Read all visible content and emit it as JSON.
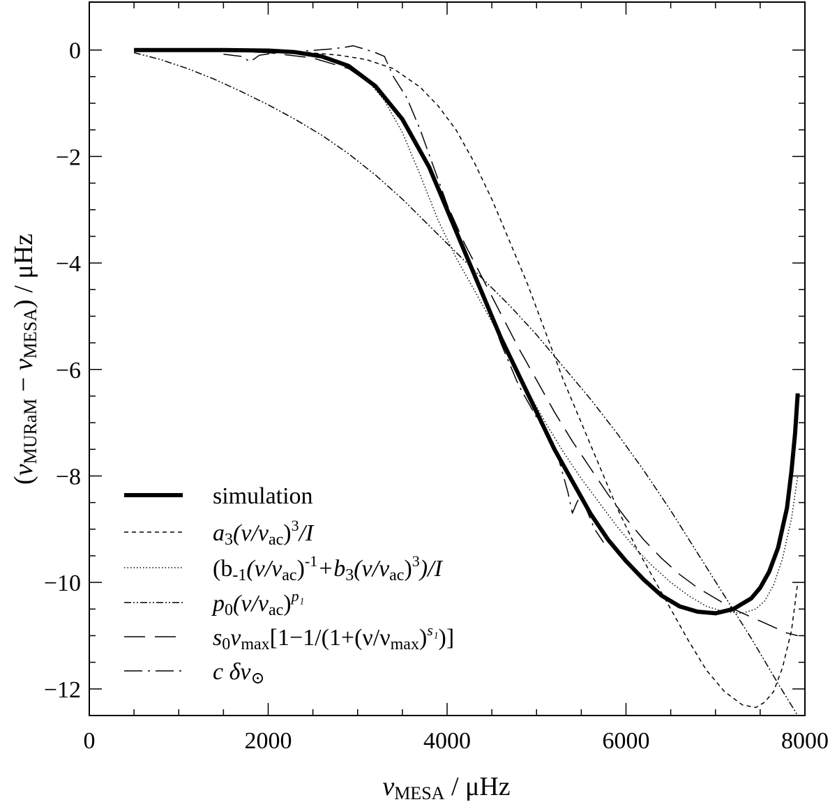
{
  "chart_data": {
    "type": "line",
    "xlim": [
      0,
      8000
    ],
    "ylim": [
      -12.5,
      0.9
    ],
    "x_ticks": [
      0,
      2000,
      4000,
      6000,
      8000
    ],
    "y_ticks": [
      0,
      -2,
      -4,
      -6,
      -8,
      -10,
      -12
    ],
    "x_tick_labels": [
      "0",
      "2000",
      "4000",
      "6000",
      "8000"
    ],
    "y_tick_labels": [
      "0",
      "−2",
      "−4",
      "−6",
      "−8",
      "−10",
      "−12"
    ],
    "xlabel": {
      "nu": "ν",
      "sub": "MESA",
      "rest": " / μHz"
    },
    "ylabel": {
      "open": "(",
      "nu1": "ν",
      "sub1": "MURaM",
      "minus": " − ",
      "nu2": "ν",
      "sub2": "MESA",
      "rest": ") / μHz"
    },
    "grid": false,
    "legend_position": "bottom-left",
    "series": [
      {
        "name": "simulation",
        "style": "thick-solid",
        "points": [
          [
            500,
            0
          ],
          [
            1000,
            0
          ],
          [
            1500,
            0
          ],
          [
            2000,
            -0.01
          ],
          [
            2300,
            -0.04
          ],
          [
            2600,
            -0.12
          ],
          [
            2900,
            -0.3
          ],
          [
            3200,
            -0.68
          ],
          [
            3500,
            -1.3
          ],
          [
            3800,
            -2.2
          ],
          [
            4000,
            -3.0
          ],
          [
            4200,
            -3.8
          ],
          [
            4400,
            -4.6
          ],
          [
            4600,
            -5.4
          ],
          [
            4800,
            -6.1
          ],
          [
            5000,
            -6.8
          ],
          [
            5200,
            -7.5
          ],
          [
            5400,
            -8.1
          ],
          [
            5600,
            -8.7
          ],
          [
            5800,
            -9.2
          ],
          [
            6000,
            -9.6
          ],
          [
            6200,
            -9.95
          ],
          [
            6400,
            -10.25
          ],
          [
            6600,
            -10.45
          ],
          [
            6800,
            -10.55
          ],
          [
            7000,
            -10.58
          ],
          [
            7200,
            -10.5
          ],
          [
            7400,
            -10.3
          ],
          [
            7500,
            -10.1
          ],
          [
            7600,
            -9.8
          ],
          [
            7700,
            -9.35
          ],
          [
            7800,
            -8.6
          ],
          [
            7850,
            -7.9
          ],
          [
            7890,
            -7.2
          ],
          [
            7920,
            -6.45
          ]
        ]
      },
      {
        "name": "a3(v/vac)^3/I",
        "label": [
          "a",
          "3",
          "(ν/ν",
          "ac",
          ")",
          "3",
          "/I"
        ],
        "style": "short-dash",
        "points": [
          [
            2000,
            -0.01
          ],
          [
            2400,
            -0.04
          ],
          [
            2800,
            -0.1
          ],
          [
            3100,
            -0.18
          ],
          [
            3400,
            -0.35
          ],
          [
            3700,
            -0.7
          ],
          [
            3900,
            -1.05
          ],
          [
            4100,
            -1.5
          ],
          [
            4300,
            -2.1
          ],
          [
            4500,
            -2.8
          ],
          [
            4700,
            -3.6
          ],
          [
            4900,
            -4.4
          ],
          [
            5100,
            -5.3
          ],
          [
            5300,
            -6.2
          ],
          [
            5500,
            -7.0
          ],
          [
            5700,
            -7.8
          ],
          [
            5900,
            -8.6
          ],
          [
            6100,
            -9.3
          ],
          [
            6300,
            -9.9
          ],
          [
            6500,
            -10.5
          ],
          [
            6700,
            -11.1
          ],
          [
            6900,
            -11.65
          ],
          [
            7100,
            -12.05
          ],
          [
            7300,
            -12.3
          ],
          [
            7450,
            -12.35
          ],
          [
            7550,
            -12.25
          ],
          [
            7650,
            -12.05
          ],
          [
            7750,
            -11.6
          ],
          [
            7850,
            -10.9
          ],
          [
            7920,
            -10.0
          ]
        ]
      },
      {
        "name": "(b-1(v/vac)^-1+b3(v/vac)^3)/I",
        "label": [
          "(b",
          "-1",
          "(ν/ν",
          "ac",
          ")",
          "-1",
          "+b",
          "3",
          "(ν/ν",
          "ac",
          ")",
          "3",
          ")/I"
        ],
        "style": "dotted",
        "points": [
          [
            2300,
            -0.03
          ],
          [
            2600,
            -0.12
          ],
          [
            2900,
            -0.32
          ],
          [
            3100,
            -0.55
          ],
          [
            3300,
            -0.95
          ],
          [
            3500,
            -1.55
          ],
          [
            3700,
            -2.35
          ],
          [
            3900,
            -3.2
          ],
          [
            4100,
            -3.9
          ],
          [
            4300,
            -4.5
          ],
          [
            4500,
            -5.1
          ],
          [
            4700,
            -5.75
          ],
          [
            4900,
            -6.4
          ],
          [
            5100,
            -7.0
          ],
          [
            5300,
            -7.55
          ],
          [
            5500,
            -8.05
          ],
          [
            5700,
            -8.5
          ],
          [
            5900,
            -8.95
          ],
          [
            6100,
            -9.35
          ],
          [
            6300,
            -9.7
          ],
          [
            6500,
            -10.0
          ],
          [
            6700,
            -10.25
          ],
          [
            6900,
            -10.45
          ],
          [
            7100,
            -10.55
          ],
          [
            7300,
            -10.58
          ],
          [
            7450,
            -10.5
          ],
          [
            7550,
            -10.35
          ],
          [
            7650,
            -10.05
          ],
          [
            7750,
            -9.55
          ],
          [
            7850,
            -8.8
          ],
          [
            7920,
            -8.0
          ]
        ]
      },
      {
        "name": "p0(v/vac)^p1",
        "label": [
          "p",
          "0",
          "(ν/ν",
          "ac",
          ")",
          "p₁"
        ],
        "style": "dash-dot-dot",
        "points": [
          [
            500,
            -0.05
          ],
          [
            800,
            -0.18
          ],
          [
            1100,
            -0.35
          ],
          [
            1400,
            -0.55
          ],
          [
            1700,
            -0.78
          ],
          [
            2000,
            -1.03
          ],
          [
            2300,
            -1.3
          ],
          [
            2600,
            -1.6
          ],
          [
            2900,
            -1.95
          ],
          [
            3200,
            -2.35
          ],
          [
            3500,
            -2.8
          ],
          [
            3800,
            -3.3
          ],
          [
            4100,
            -3.8
          ],
          [
            4400,
            -4.3
          ],
          [
            4700,
            -4.8
          ],
          [
            5000,
            -5.35
          ],
          [
            5300,
            -5.95
          ],
          [
            5600,
            -6.55
          ],
          [
            5900,
            -7.2
          ],
          [
            6200,
            -7.9
          ],
          [
            6500,
            -8.65
          ],
          [
            6800,
            -9.45
          ],
          [
            7100,
            -10.25
          ],
          [
            7400,
            -11.05
          ],
          [
            7700,
            -11.9
          ],
          [
            7920,
            -12.5
          ]
        ]
      },
      {
        "name": "s0vmax[1-1/(1+(v/vmax)^s1)]",
        "label": [
          "s",
          "0",
          "ν",
          "max",
          "[1−1/(1+(ν/ν",
          "max",
          ")",
          "s₁",
          ")]"
        ],
        "style": "long-dash",
        "points": [
          [
            1500,
            -0.02
          ],
          [
            2000,
            -0.05
          ],
          [
            2500,
            -0.15
          ],
          [
            2900,
            -0.35
          ],
          [
            3200,
            -0.7
          ],
          [
            3500,
            -1.3
          ],
          [
            3800,
            -2.15
          ],
          [
            4000,
            -2.9
          ],
          [
            4200,
            -3.65
          ],
          [
            4400,
            -4.3
          ],
          [
            4600,
            -4.95
          ],
          [
            4800,
            -5.6
          ],
          [
            5000,
            -6.2
          ],
          [
            5200,
            -6.8
          ],
          [
            5400,
            -7.35
          ],
          [
            5600,
            -7.85
          ],
          [
            5800,
            -8.35
          ],
          [
            6000,
            -8.8
          ],
          [
            6200,
            -9.2
          ],
          [
            6400,
            -9.55
          ],
          [
            6600,
            -9.85
          ],
          [
            6800,
            -10.1
          ],
          [
            7000,
            -10.3
          ],
          [
            7200,
            -10.5
          ],
          [
            7400,
            -10.65
          ],
          [
            7600,
            -10.8
          ],
          [
            7800,
            -10.95
          ],
          [
            7920,
            -11.0
          ]
        ]
      },
      {
        "name": "c dv_sun",
        "label": [
          "c δν",
          "⊙"
        ],
        "style": "dash-dot",
        "points": [
          [
            1500,
            -0.08
          ],
          [
            1700,
            -0.12
          ],
          [
            1800,
            -0.22
          ],
          [
            1900,
            -0.1
          ],
          [
            2100,
            -0.05
          ],
          [
            2400,
            -0.02
          ],
          [
            2700,
            0.02
          ],
          [
            2850,
            0.05
          ],
          [
            2950,
            0.08
          ],
          [
            3050,
            0.03
          ],
          [
            3200,
            -0.05
          ],
          [
            3300,
            -0.12
          ],
          [
            3400,
            -0.5
          ],
          [
            3550,
            -0.9
          ],
          [
            3700,
            -1.5
          ],
          [
            3850,
            -2.2
          ],
          [
            4000,
            -2.9
          ],
          [
            4150,
            -3.6
          ],
          [
            4300,
            -4.2
          ],
          [
            4450,
            -4.8
          ],
          [
            4600,
            -5.5
          ],
          [
            4800,
            -6.3
          ],
          [
            5000,
            -6.9
          ],
          [
            5150,
            -7.3
          ],
          [
            5250,
            -7.7
          ],
          [
            5350,
            -8.3
          ],
          [
            5400,
            -8.7
          ],
          [
            5450,
            -8.5
          ],
          [
            5500,
            -8.35
          ],
          [
            5550,
            -8.6
          ],
          [
            5650,
            -9.0
          ],
          [
            5750,
            -9.25
          ]
        ]
      }
    ]
  }
}
